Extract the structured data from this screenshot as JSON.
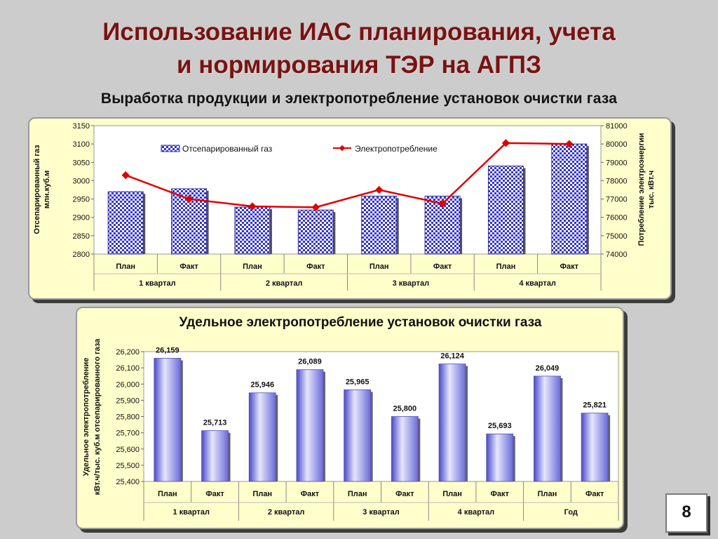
{
  "slide": {
    "title_line1": "Использование ИАС планирования, учета",
    "title_line2": "и нормирования ТЭР на АГПЗ",
    "subtitle": "Выработка продукции и электропотребление установок очистки газа",
    "page_number": "8"
  },
  "chart_data": [
    {
      "type": "bar",
      "categories": [
        "План",
        "Факт",
        "План",
        "Факт",
        "План",
        "Факт",
        "План",
        "Факт"
      ],
      "groups": [
        "1 квартал",
        "2 квартал",
        "3 квартал",
        "4 квартал"
      ],
      "series": [
        {
          "name": "Отсепарированный газ",
          "type": "bar",
          "axis": "left",
          "values": [
            2970,
            2978,
            2928,
            2920,
            2958,
            2958,
            3040,
            3100
          ]
        },
        {
          "name": "Электропотребление",
          "type": "line",
          "axis": "right",
          "values": [
            78300,
            77000,
            76600,
            76550,
            77500,
            76750,
            80050,
            80000
          ]
        }
      ],
      "ylabel": "Отсепарированный газ млн.куб.м",
      "ylabel_right": "Потребление электроэнергии тыс. кВт.ч",
      "ylim": [
        2800,
        3150
      ],
      "ylim_right": [
        74000,
        81000
      ],
      "yticks": [
        "2800",
        "2850",
        "2900",
        "2950",
        "3000",
        "3050",
        "3100",
        "3150"
      ],
      "yticks_right": [
        "74000",
        "75000",
        "76000",
        "77000",
        "78000",
        "79000",
        "80000",
        "81000"
      ],
      "legend": "top",
      "colors": {
        "bar": "#3333cc",
        "line": "#e00000"
      }
    },
    {
      "type": "bar",
      "title": "Удельное электропотребление установок очистки газа",
      "categories": [
        "План",
        "Факт",
        "План",
        "Факт",
        "План",
        "Факт",
        "План",
        "Факт",
        "План",
        "Факт"
      ],
      "groups": [
        "1 квартал",
        "2 квартал",
        "3 квартал",
        "4 квартал",
        "Год"
      ],
      "values": [
        26.159,
        25.713,
        25.946,
        26.089,
        25.965,
        25.8,
        26.124,
        25.693,
        26.049,
        25.821
      ],
      "data_labels": [
        "26,159",
        "25,713",
        "25,946",
        "26,089",
        "25,965",
        "25,800",
        "26,124",
        "25,693",
        "26,049",
        "25,821"
      ],
      "ylabel_line1": "Удельное электропотребление",
      "ylabel_line2": "кВт.ч/тыс. куб.м отсепарированного газа",
      "ylim": [
        25.4,
        26.2
      ],
      "yticks": [
        "25,400",
        "25,500",
        "25,600",
        "25,700",
        "25,800",
        "25,900",
        "26,000",
        "26,100",
        "26,200"
      ],
      "colors": {
        "bar": "#7777dd"
      }
    }
  ]
}
